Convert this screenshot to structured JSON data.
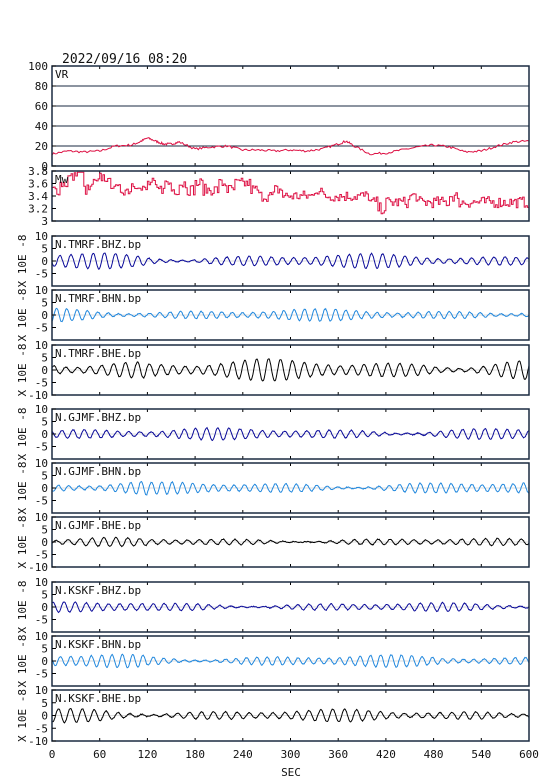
{
  "chart_data": {
    "type": "line",
    "title": "2022/09/16 08:20",
    "xlabel": "SEC",
    "xlim": [
      0,
      600
    ],
    "x_ticks": [
      0,
      60,
      120,
      180,
      240,
      300,
      360,
      420,
      480,
      540,
      600
    ],
    "colors": {
      "vr": "#dd1144",
      "mw": "#dd1144",
      "bhz": "#0a0a99",
      "bhn": "#2288dd",
      "bhe": "#000000"
    },
    "panels": [
      {
        "label": "VR",
        "ylim": [
          0,
          100
        ],
        "y_ticks": [
          0,
          20,
          40,
          60,
          80,
          100
        ],
        "grid": true,
        "series": {
          "color_key": "vr",
          "x": [
            0,
            20,
            40,
            60,
            80,
            100,
            110,
            120,
            130,
            140,
            150,
            160,
            180,
            200,
            220,
            240,
            260,
            280,
            300,
            320,
            340,
            360,
            370,
            380,
            400,
            420,
            440,
            460,
            480,
            500,
            520,
            540,
            560,
            580,
            600
          ],
          "values": [
            12,
            15,
            14,
            15,
            20,
            21,
            24,
            28,
            25,
            22,
            22,
            24,
            17,
            19,
            20,
            16,
            16,
            15,
            16,
            15,
            17,
            22,
            25,
            20,
            12,
            13,
            16,
            19,
            21,
            19,
            14,
            15,
            20,
            24,
            25
          ]
        }
      },
      {
        "label": "Mw",
        "ylim": [
          3.0,
          3.8
        ],
        "y_ticks": [
          3.0,
          3.2,
          3.4,
          3.6,
          3.8
        ],
        "grid": false,
        "series": {
          "color_key": "mw",
          "x": [
            0,
            10,
            20,
            30,
            40,
            50,
            60,
            70,
            80,
            90,
            100,
            110,
            120,
            130,
            140,
            150,
            160,
            170,
            180,
            190,
            200,
            210,
            220,
            230,
            240,
            250,
            260,
            270,
            280,
            290,
            300,
            310,
            320,
            330,
            340,
            350,
            360,
            370,
            380,
            390,
            400,
            410,
            420,
            430,
            440,
            450,
            460,
            470,
            480,
            490,
            500,
            510,
            520,
            530,
            540,
            550,
            560,
            570,
            580,
            590,
            600
          ],
          "values": [
            3.5,
            3.6,
            3.7,
            3.8,
            3.5,
            3.6,
            3.7,
            3.6,
            3.5,
            3.5,
            3.6,
            3.5,
            3.6,
            3.5,
            3.6,
            3.5,
            3.6,
            3.5,
            3.6,
            3.5,
            3.5,
            3.6,
            3.5,
            3.6,
            3.6,
            3.5,
            3.4,
            3.4,
            3.5,
            3.4,
            3.4,
            3.4,
            3.4,
            3.5,
            3.4,
            3.4,
            3.4,
            3.4,
            3.4,
            3.4,
            3.3,
            3.2,
            3.3,
            3.3,
            3.3,
            3.4,
            3.3,
            3.3,
            3.3,
            3.3,
            3.4,
            3.3,
            3.3,
            3.3,
            3.3,
            3.3,
            3.3,
            3.3,
            3.3,
            3.3,
            3.3
          ]
        }
      },
      {
        "label": "N.TMRF.BHZ.bp",
        "unit": "X 10E -8",
        "ylim": [
          -10,
          10
        ],
        "y_ticks": [
          -5,
          0,
          5,
          10
        ],
        "series": {
          "color_key": "bhz",
          "amplitude": 3.0,
          "period_sec": 14
        }
      },
      {
        "label": "N.TMRF.BHN.bp",
        "unit": "X 10E -8",
        "ylim": [
          -10,
          10
        ],
        "y_ticks": [
          -5,
          0,
          5,
          10
        ],
        "series": {
          "color_key": "bhn",
          "amplitude": 2.5,
          "period_sec": 13
        }
      },
      {
        "label": "N.TMRF.BHE.bp",
        "unit": "X 10E -8",
        "ylim": [
          -10,
          10
        ],
        "y_ticks": [
          -10,
          -5,
          0,
          5,
          10
        ],
        "series": {
          "color_key": "bhe",
          "amplitude": 4.5,
          "period_sec": 15
        }
      },
      {
        "label": "N.GJMF.BHZ.bp",
        "unit": "X 10E -8",
        "ylim": [
          -10,
          10
        ],
        "y_ticks": [
          -5,
          0,
          5,
          10
        ],
        "series": {
          "color_key": "bhz",
          "amplitude": 2.5,
          "period_sec": 14
        }
      },
      {
        "label": "N.GJMF.BHN.bp",
        "unit": "X 10E -8",
        "ylim": [
          -10,
          10
        ],
        "y_ticks": [
          -5,
          0,
          5,
          10
        ],
        "series": {
          "color_key": "bhn",
          "amplitude": 2.5,
          "period_sec": 13
        }
      },
      {
        "label": "N.GJMF.BHE.bp",
        "unit": "X 10E -8",
        "ylim": [
          -10,
          10
        ],
        "y_ticks": [
          -10,
          -5,
          0,
          5,
          10
        ],
        "series": {
          "color_key": "bhe",
          "amplitude": 1.5,
          "period_sec": 15
        }
      },
      {
        "label": "N.KSKF.BHZ.bp",
        "unit": "X 10E -8",
        "ylim": [
          -10,
          10
        ],
        "y_ticks": [
          -5,
          0,
          5,
          10
        ],
        "series": {
          "color_key": "bhz",
          "amplitude": 1.8,
          "period_sec": 14
        }
      },
      {
        "label": "N.KSKF.BHN.bp",
        "unit": "X 10E -8",
        "ylim": [
          -10,
          10
        ],
        "y_ticks": [
          -5,
          0,
          5,
          10
        ],
        "series": {
          "color_key": "bhn",
          "amplitude": 2.5,
          "period_sec": 13
        }
      },
      {
        "label": "N.KSKF.BHE.bp",
        "unit": "X 10E -8",
        "ylim": [
          -10,
          10
        ],
        "y_ticks": [
          -10,
          -5,
          0,
          5,
          10
        ],
        "series": {
          "color_key": "bhe",
          "amplitude": 2.5,
          "period_sec": 15
        }
      }
    ]
  }
}
